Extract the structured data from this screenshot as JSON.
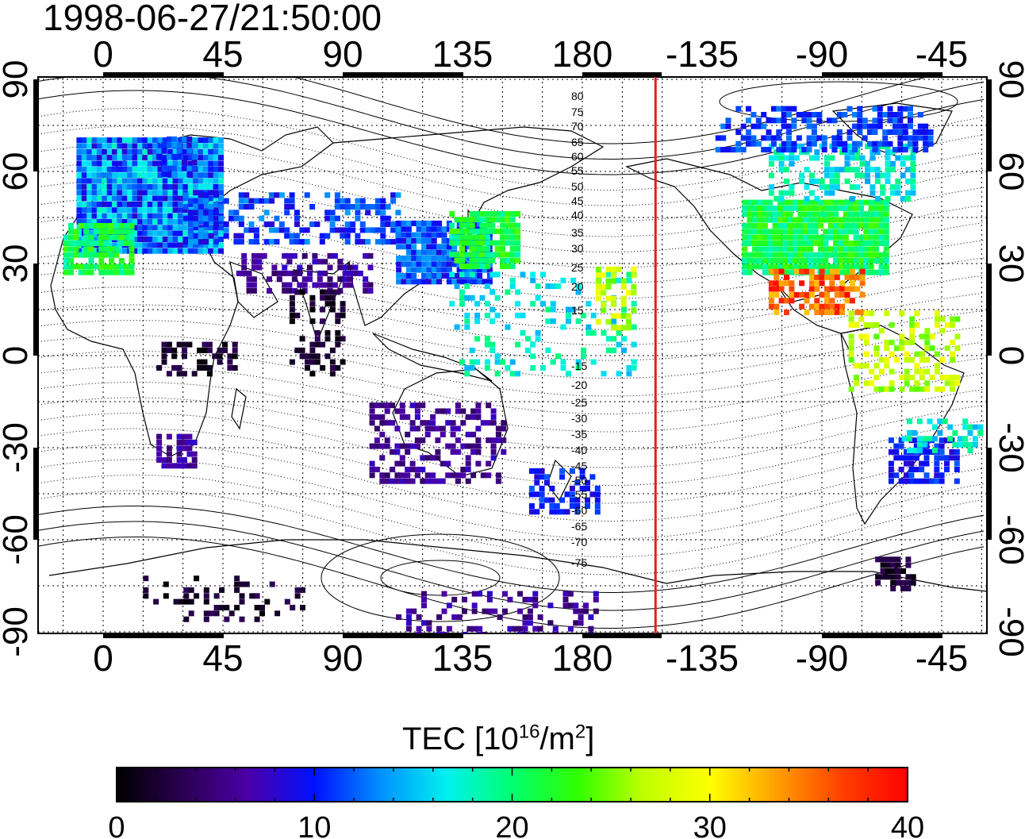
{
  "title": "1998-06-27/21:50:00",
  "map": {
    "top_axis_labels": [
      "0",
      "45",
      "90",
      "135",
      "180",
      "-135",
      "-90",
      "-45"
    ],
    "bottom_axis_labels": [
      "0",
      "45",
      "90",
      "135",
      "180",
      "-135",
      "-90",
      "-45"
    ],
    "left_axis_labels": [
      "90",
      "60",
      "30",
      "0",
      "-30",
      "-60",
      "-90"
    ],
    "right_axis_labels": [
      "90",
      "60",
      "30",
      "0",
      "-30",
      "-60",
      "-90"
    ],
    "contour_labels_north": [
      "80",
      "75",
      "70",
      "65",
      "60",
      "55",
      "50",
      "45",
      "40",
      "35",
      "30",
      "25",
      "20",
      "15"
    ],
    "contour_labels_south": [
      "-15",
      "-20",
      "-25",
      "-30",
      "-35",
      "-40",
      "-45",
      "-50",
      "-55",
      "-60",
      "-65",
      "-70",
      "-75"
    ],
    "terminator_longitude": -152.5,
    "terminator_color": "#e0201b"
  },
  "colorbar": {
    "title_prefix": "TEC  [10",
    "title_exp1": "16",
    "title_mid": "/m",
    "title_exp2": "2",
    "title_suffix": "]",
    "tick_labels": [
      "0",
      "10",
      "20",
      "30",
      "40"
    ],
    "min": 0,
    "max": 40,
    "gradient_colors": [
      "#000000",
      "#2a0050",
      "#4b00a8",
      "#0010ff",
      "#0090ff",
      "#00f0f0",
      "#00ff70",
      "#30ff00",
      "#c0ff00",
      "#ffff00",
      "#ffa000",
      "#ff4000",
      "#ff0000"
    ]
  }
}
